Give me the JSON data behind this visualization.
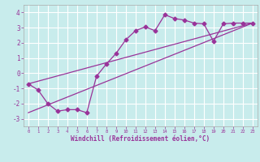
{
  "xlabel": "Windchill (Refroidissement éolien,°C)",
  "background_color": "#c8ecec",
  "line_color": "#993399",
  "grid_color": "#ffffff",
  "xlim": [
    -0.5,
    23.5
  ],
  "ylim": [
    -3.5,
    4.5
  ],
  "xticks": [
    0,
    1,
    2,
    3,
    4,
    5,
    6,
    7,
    8,
    9,
    10,
    11,
    12,
    13,
    14,
    15,
    16,
    17,
    18,
    19,
    20,
    21,
    22,
    23
  ],
  "yticks": [
    -3,
    -2,
    -1,
    0,
    1,
    2,
    3,
    4
  ],
  "curve1_x": [
    0,
    1,
    2,
    3,
    4,
    5,
    6,
    7,
    8,
    9,
    10,
    11,
    12,
    13,
    14,
    15,
    16,
    17,
    18,
    19,
    20,
    21,
    22,
    23
  ],
  "curve1_y": [
    -0.7,
    -1.1,
    -2.0,
    -2.5,
    -2.4,
    -2.4,
    -2.6,
    -0.2,
    0.6,
    1.3,
    2.2,
    2.8,
    3.05,
    2.8,
    3.85,
    3.6,
    3.5,
    3.3,
    3.25,
    2.1,
    3.25,
    3.3,
    3.3,
    3.3
  ],
  "line1_x": [
    0,
    23
  ],
  "line1_y": [
    -0.7,
    3.3
  ],
  "line2_x": [
    0,
    23
  ],
  "line2_y": [
    -2.6,
    3.3
  ],
  "marker": "D",
  "markersize": 2.5,
  "tick_color": "#993399",
  "xlabel_fontsize": 5.5,
  "xlabel_bold": true,
  "xtick_fontsize": 4.0,
  "ytick_fontsize": 5.5
}
